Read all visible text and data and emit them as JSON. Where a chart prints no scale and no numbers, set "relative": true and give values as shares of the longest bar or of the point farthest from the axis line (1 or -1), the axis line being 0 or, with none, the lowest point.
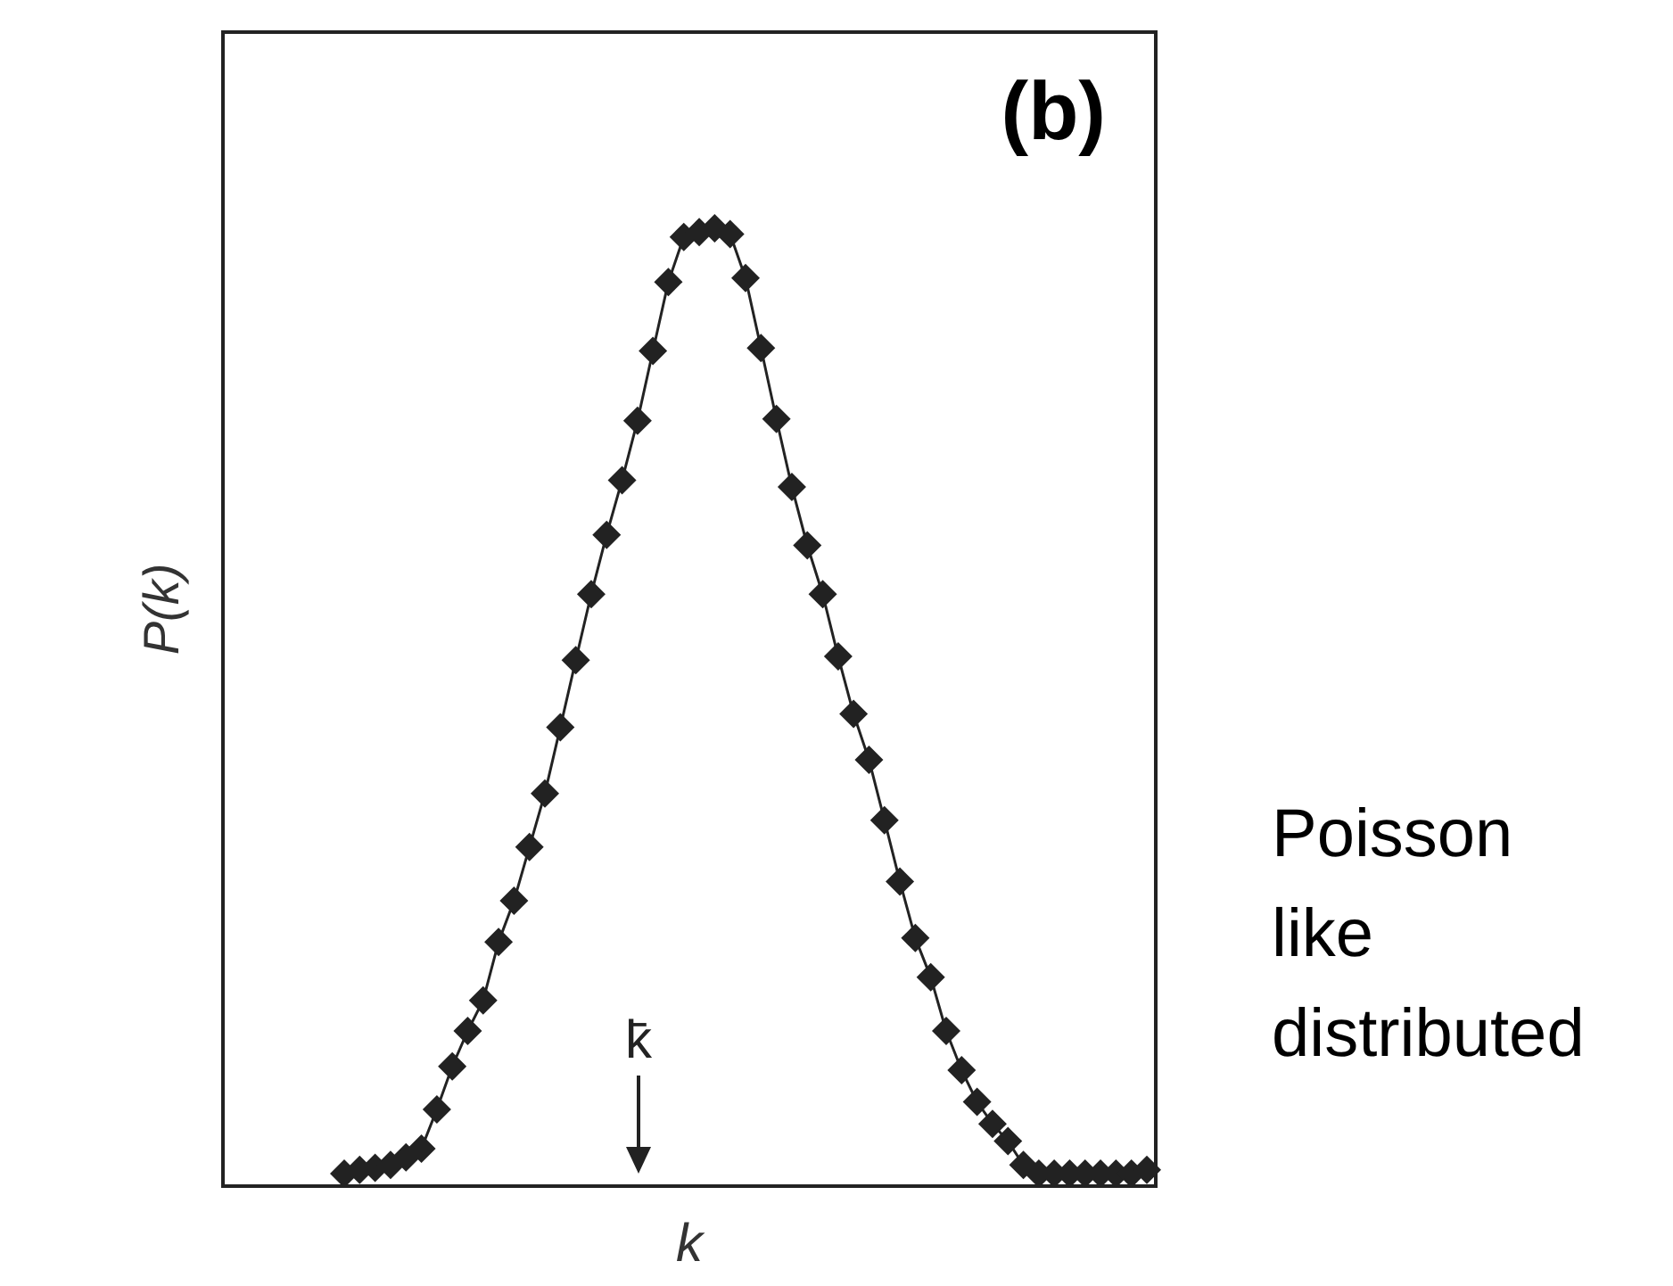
{
  "chart_data": {
    "type": "line",
    "xlabel": "k",
    "ylabel": "P(k)",
    "relative": true,
    "marker": "diamond",
    "line_style": "solid",
    "categories": [
      null,
      null,
      null,
      null,
      null,
      null,
      null,
      null,
      null,
      null,
      null,
      null,
      null,
      null,
      null,
      null,
      null,
      null,
      null,
      null,
      null,
      null,
      null,
      null,
      null,
      null,
      null,
      null,
      null,
      null,
      null,
      null,
      null,
      null,
      null,
      null,
      null,
      null,
      null,
      null,
      null,
      null,
      null,
      null,
      null,
      null,
      null,
      null,
      null,
      null,
      null,
      null,
      null
    ],
    "series": [
      {
        "color": "#222222",
        "values": [
          0.013,
          0.017,
          0.019,
          0.022,
          0.03,
          0.039,
          0.08,
          0.125,
          0.162,
          0.194,
          0.255,
          0.298,
          0.354,
          0.41,
          0.479,
          0.549,
          0.618,
          0.68,
          0.737,
          0.799,
          0.872,
          0.944,
          0.991,
          0.996,
          1,
          0.994,
          0.948,
          0.875,
          0.801,
          0.73,
          0.669,
          0.618,
          0.553,
          0.493,
          0.445,
          0.382,
          0.318,
          0.259,
          0.218,
          0.162,
          0.121,
          0.088,
          0.065,
          0.047,
          0.022,
          0.013,
          0.013,
          0.013,
          0.013,
          0.013,
          0.013,
          0.013,
          0.017
        ]
      }
    ],
    "annotations": [
      "(b)",
      "k̄",
      "Poisson like distributed"
    ]
  }
}
